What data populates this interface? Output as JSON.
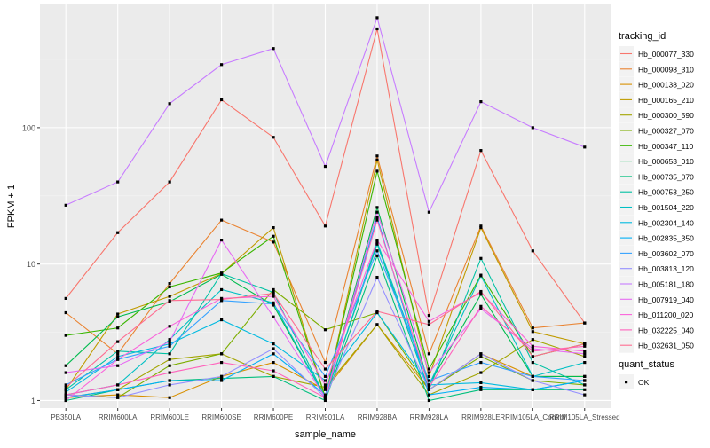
{
  "chart_data": {
    "type": "line",
    "xlabel": "sample_name",
    "ylabel": "FPKM + 1",
    "y_scale": "log10",
    "ylim": [
      0.88,
      800
    ],
    "y_ticks": [
      1,
      10,
      100
    ],
    "grid": true,
    "legend_position": "right",
    "categories": [
      "PB350LA",
      "RRIM600LA",
      "RRIM600LE",
      "RRIM600SE",
      "RRIM600PE",
      "RRIM901LA",
      "RRIM928BA",
      "RRIM928LA",
      "RRIM928LE",
      "RRIM105LA_Control",
      "RRIM105LA_Stressed"
    ],
    "series": [
      {
        "name": "Hb_000077_330",
        "color": "#F8766D",
        "values": [
          5.6,
          17,
          40,
          160,
          85,
          19,
          530,
          4.2,
          68,
          12.5,
          3.7
        ]
      },
      {
        "name": "Hb_000098_310",
        "color": "#EA8331",
        "values": [
          4.4,
          2.2,
          7.2,
          21,
          14.5,
          1.9,
          62,
          2.2,
          19,
          3.4,
          3.7
        ]
      },
      {
        "name": "Hb_000138_020",
        "color": "#D89000",
        "values": [
          1.05,
          1.1,
          1.05,
          1.5,
          1.9,
          1.2,
          3.6,
          1.2,
          2.2,
          1.5,
          1.5
        ]
      },
      {
        "name": "Hb_000165_210",
        "color": "#C09B00",
        "values": [
          1.2,
          4.3,
          5.8,
          8.5,
          18.5,
          1.05,
          58,
          1.5,
          18.5,
          3.2,
          2.6
        ]
      },
      {
        "name": "Hb_000300_590",
        "color": "#A3A500",
        "values": [
          1.05,
          1.2,
          2.0,
          2.2,
          1.5,
          1.25,
          3.6,
          1.1,
          1.6,
          2.8,
          2.1
        ]
      },
      {
        "name": "Hb_000327_070",
        "color": "#7CAE00",
        "values": [
          1.1,
          1.05,
          1.8,
          2.2,
          6.5,
          3.3,
          4.4,
          1.2,
          2.1,
          1.4,
          1.3
        ]
      },
      {
        "name": "Hb_000347_110",
        "color": "#39B600",
        "values": [
          3.0,
          3.4,
          6.8,
          8.6,
          16,
          1.05,
          48,
          1.7,
          8.3,
          2.1,
          2.6
        ]
      },
      {
        "name": "Hb_000653_010",
        "color": "#00BB4E",
        "values": [
          1.8,
          4.1,
          5.3,
          8.4,
          5.0,
          1.05,
          26,
          1.3,
          6.0,
          1.5,
          1.5
        ]
      },
      {
        "name": "Hb_000735_070",
        "color": "#00BF7D",
        "values": [
          1.0,
          1.2,
          1.4,
          1.45,
          1.5,
          1.0,
          11.5,
          1.0,
          1.2,
          1.2,
          1.2
        ]
      },
      {
        "name": "Hb_000753_250",
        "color": "#00C1A3",
        "values": [
          1.2,
          2.3,
          2.2,
          8.5,
          6.2,
          1.05,
          14,
          1.2,
          11,
          1.9,
          1.3
        ]
      },
      {
        "name": "Hb_001504_220",
        "color": "#00BFC4",
        "values": [
          1.1,
          1.3,
          2.8,
          6.5,
          5.2,
          1.05,
          14.5,
          1.3,
          8.2,
          1.5,
          1.9
        ]
      },
      {
        "name": "Hb_002304_140",
        "color": "#00BAE0",
        "values": [
          1.15,
          2.1,
          2.6,
          3.9,
          2.6,
          1.4,
          4.4,
          1.3,
          1.35,
          1.2,
          1.4
        ]
      },
      {
        "name": "Hb_002835_350",
        "color": "#00B0F6",
        "values": [
          1.05,
          1.2,
          1.4,
          1.4,
          2.2,
          1.1,
          22,
          1.1,
          1.25,
          1.2,
          1.4
        ]
      },
      {
        "name": "Hb_003602_070",
        "color": "#35A2FF",
        "values": [
          1.3,
          2.0,
          2.5,
          5.4,
          5.1,
          1.5,
          12.5,
          1.4,
          1.9,
          1.5,
          1.4
        ]
      },
      {
        "name": "Hb_003813_120",
        "color": "#9590FF",
        "values": [
          1.1,
          1.05,
          1.3,
          1.5,
          2.4,
          1.05,
          8.0,
          1.2,
          2.2,
          1.4,
          1.1
        ]
      },
      {
        "name": "Hb_005181_180",
        "color": "#C77CFF",
        "values": [
          27,
          40,
          150,
          290,
          380,
          52,
          640,
          24,
          155,
          100,
          72
        ]
      },
      {
        "name": "Hb_007919_040",
        "color": "#E76BF3",
        "values": [
          1.6,
          1.8,
          2.7,
          15,
          4.1,
          1.05,
          24,
          1.6,
          4.7,
          2.4,
          2.2
        ]
      },
      {
        "name": "Hb_011200_020",
        "color": "#FA62DB",
        "values": [
          1.0,
          2.0,
          3.5,
          5.6,
          5.8,
          1.3,
          15,
          3.8,
          6.2,
          2.5,
          2.3
        ]
      },
      {
        "name": "Hb_032225_040",
        "color": "#FF62BC",
        "values": [
          1.1,
          1.3,
          1.6,
          1.9,
          1.65,
          1.05,
          21,
          1.25,
          4.9,
          2.3,
          2.5
        ]
      },
      {
        "name": "Hb_032631_050",
        "color": "#FF6C91",
        "values": [
          1.25,
          2.7,
          5.4,
          5.5,
          6.1,
          1.7,
          4.5,
          3.6,
          6.3,
          2.1,
          2.6
        ]
      }
    ],
    "legend": {
      "color_title": "tracking_id",
      "shape_title": "quant_status",
      "shape_entries": [
        "OK"
      ]
    }
  }
}
